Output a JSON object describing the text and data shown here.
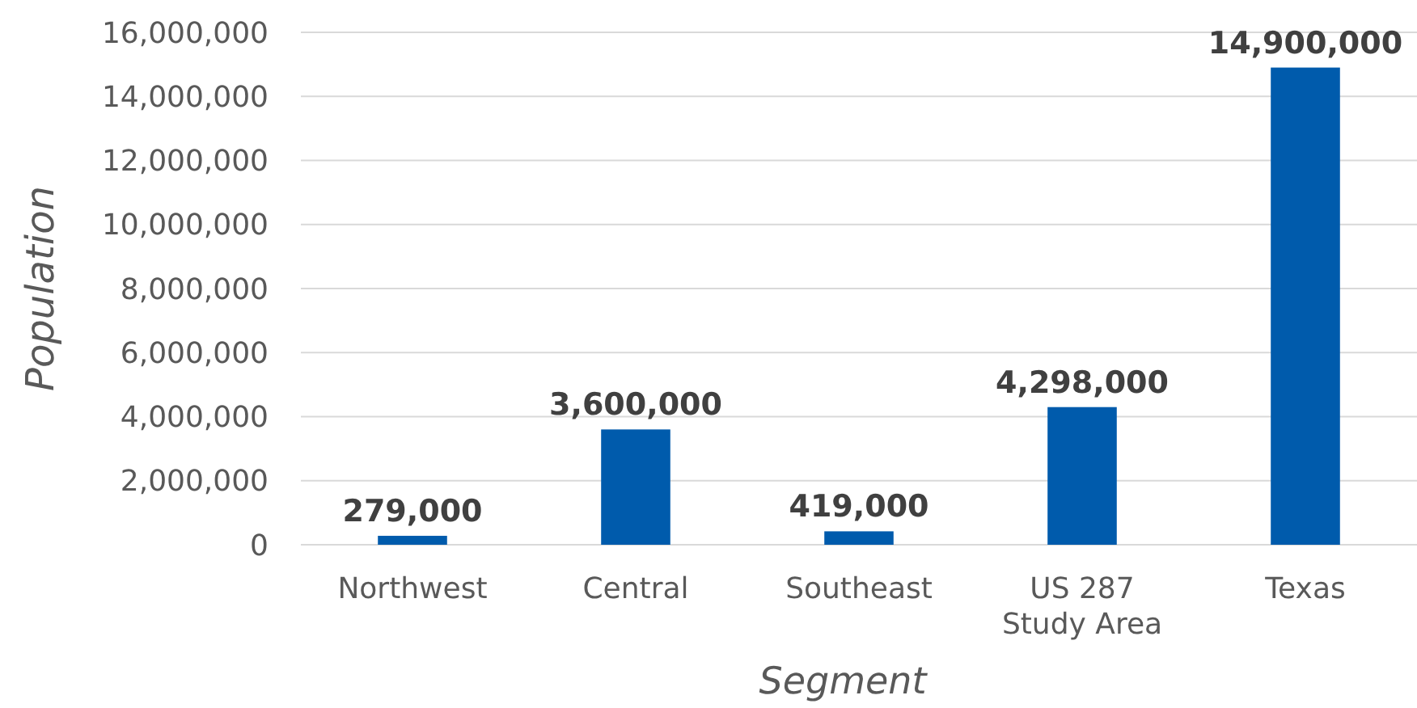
{
  "chart_data": {
    "type": "bar",
    "xlabel": "Segment",
    "ylabel": "Population",
    "categories": [
      "Northwest",
      "Central",
      "Southeast",
      "US 287 Study Area",
      "Texas"
    ],
    "values": [
      279000,
      3600000,
      419000,
      4298000,
      14900000
    ],
    "color": "#005bac",
    "ylim": [
      0,
      16000000
    ],
    "yticks": [
      {
        "value": 0,
        "label": "0"
      },
      {
        "value": 2000000,
        "label": "2,000,000"
      },
      {
        "value": 4000000,
        "label": "4,000,000"
      },
      {
        "value": 6000000,
        "label": "6,000,000"
      },
      {
        "value": 8000000,
        "label": "8,000,000"
      },
      {
        "value": 10000000,
        "label": "10,000,000"
      },
      {
        "value": 12000000,
        "label": "12,000,000"
      },
      {
        "value": 14000000,
        "label": "14,000,000"
      },
      {
        "value": 16000000,
        "label": "16,000,000"
      }
    ],
    "value_labels": [
      "279,000",
      "3,600,000",
      "419,000",
      "4,298,000",
      "14,900,000"
    ],
    "grid": "y"
  }
}
